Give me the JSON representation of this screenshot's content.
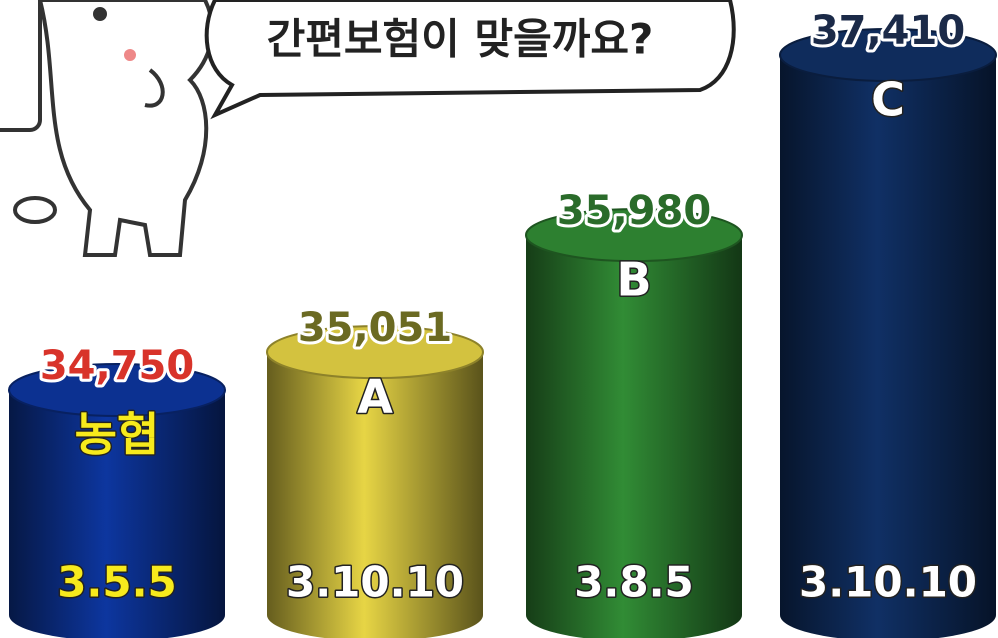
{
  "chart_data": {
    "type": "bar",
    "annotation": "간편보험이 맞을까요?",
    "categories": [
      "농협",
      "A",
      "B",
      "C"
    ],
    "values": [
      34750,
      35051,
      35980,
      37410
    ],
    "value_labels": [
      "34,750",
      "35,051",
      "35,980",
      "37,410"
    ],
    "codes": [
      "3.5.5",
      "3.10.10",
      "3.8.5",
      "3.10.10"
    ],
    "colors": [
      "#0b2f8a",
      "#c9b93c",
      "#2b7a2e",
      "#0e2a58"
    ],
    "value_label_colors": [
      "#d8332a",
      "#6b6a22",
      "#2a6b2a",
      "#1b2a48"
    ],
    "category_label_colors": [
      "#f7ea1c",
      "#ffffff",
      "#ffffff",
      "#ffffff"
    ],
    "code_label_colors": [
      "#f7ea1c",
      "#ffffff",
      "#ffffff",
      "#ffffff"
    ]
  }
}
